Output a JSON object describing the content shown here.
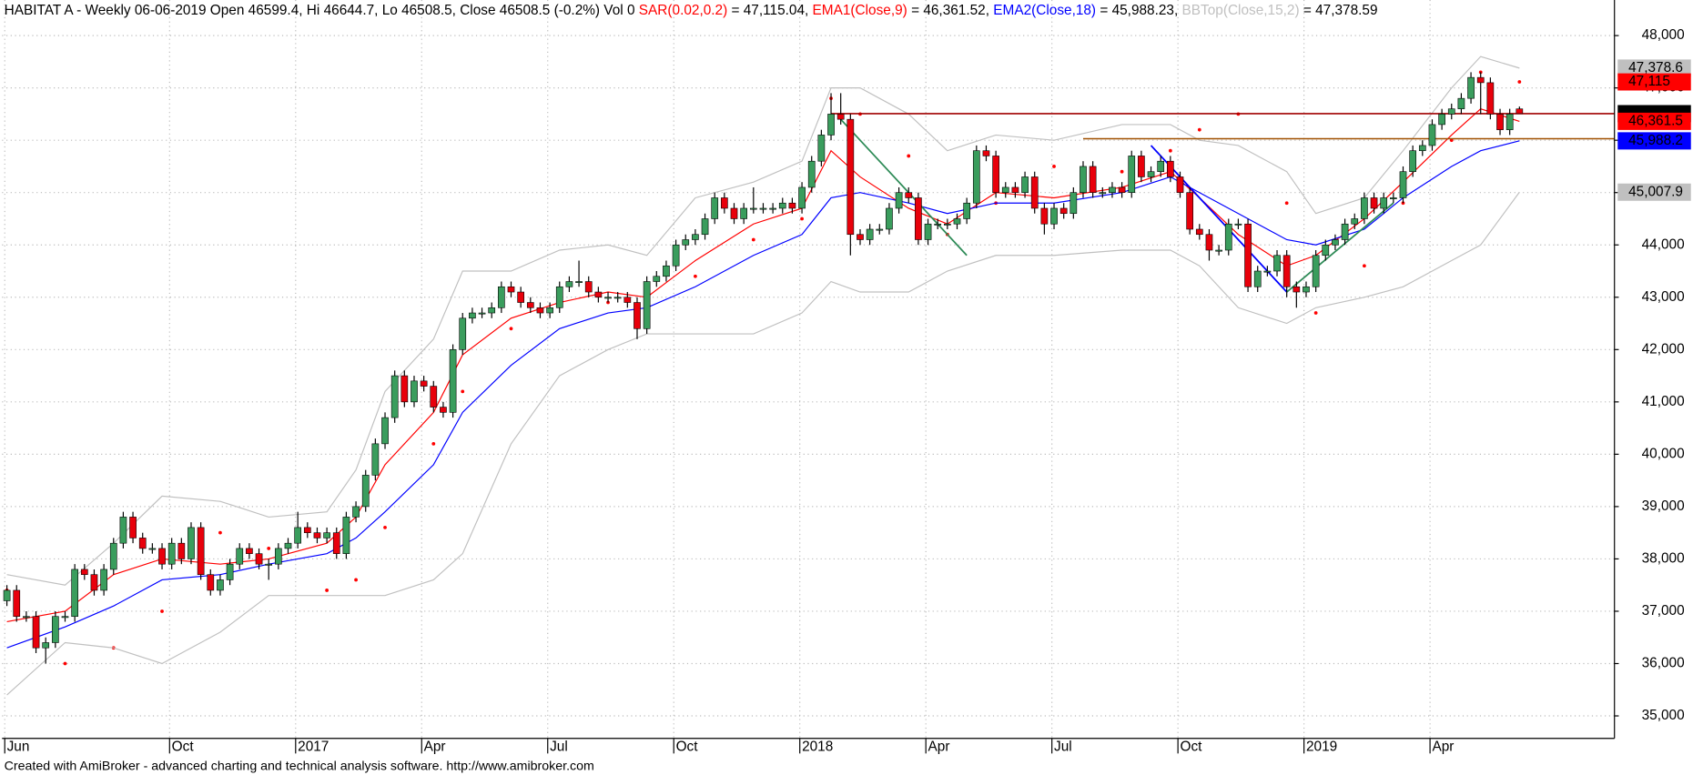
{
  "chart_data": {
    "type": "candlestick",
    "title": "HABITAT A - Weekly 06-06-2019 Open 46599.4, Hi 46644.7, Lo 46508.5, Close 46508.5 (-0.2%) Vol 0 ",
    "footer": "Created with AmiBroker - advanced charting and technical analysis software. http://www.amibroker.com",
    "up_color": "#3a9d5d",
    "down_color": "#e8000b",
    "categories": [
      "Jun",
      null,
      null,
      null,
      null,
      null,
      null,
      null,
      null,
      null,
      null,
      null,
      null,
      null,
      null,
      null,
      null,
      "Oct",
      null,
      null,
      null,
      null,
      null,
      null,
      null,
      null,
      null,
      null,
      null,
      null,
      "2017",
      null,
      null,
      null,
      null,
      null,
      null,
      null,
      null,
      null,
      null,
      null,
      null,
      "Apr",
      null,
      null,
      null,
      null,
      null,
      null,
      null,
      null,
      null,
      null,
      null,
      null,
      "Jul",
      null,
      null,
      null,
      null,
      null,
      null,
      null,
      null,
      null,
      null,
      null,
      null,
      "Oct",
      null,
      null,
      null,
      null,
      null,
      null,
      null,
      null,
      null,
      null,
      null,
      null,
      "2018",
      null,
      null,
      null,
      null,
      null,
      null,
      null,
      null,
      null,
      null,
      null,
      null,
      "Apr",
      null,
      null,
      null,
      null,
      null,
      null,
      null,
      null,
      null,
      null,
      null,
      null,
      "Jul",
      null,
      null,
      null,
      null,
      null,
      null,
      null,
      null,
      null,
      null,
      null,
      null,
      "Oct",
      null,
      null,
      null,
      null,
      null,
      null,
      null,
      null,
      null,
      null,
      null,
      null,
      "2019",
      null,
      null,
      null,
      null,
      null,
      null,
      null,
      null,
      null,
      null,
      null,
      null,
      "Apr",
      null,
      null,
      null,
      null,
      null,
      null,
      null,
      null,
      null
    ],
    "open": [
      37200,
      37400,
      36900,
      36900,
      36300,
      36400,
      36900,
      36900,
      37800,
      37700,
      37400,
      37800,
      38300,
      38800,
      38400,
      38200,
      38200,
      37900,
      38300,
      38000,
      38600,
      37700,
      37400,
      37600,
      37900,
      38200,
      38100,
      37900,
      37900,
      38200,
      38300,
      38600,
      38500,
      38400,
      38500,
      38100,
      38800,
      39000,
      39600,
      40200,
      40700,
      41500,
      41000,
      41400,
      41300,
      40900,
      40800,
      42000,
      42600,
      42700,
      42700,
      42800,
      43200,
      43100,
      42900,
      42800,
      42700,
      42800,
      43200,
      43300,
      43300,
      43100,
      43000,
      43000,
      43000,
      42900,
      42400,
      43300,
      43400,
      43600,
      44000,
      44100,
      44200,
      44500,
      44900,
      44700,
      44500,
      44700,
      44700,
      44700,
      44700,
      44800,
      44700,
      45100,
      45600,
      46100,
      46500,
      46400,
      44200,
      44100,
      44300,
      44300,
      44700,
      45000,
      44900,
      44100,
      44400,
      44400,
      44400,
      44500,
      44800,
      45800,
      45700,
      45000,
      45100,
      45000,
      45300,
      44700,
      44400,
      44700,
      44600,
      45000,
      45500,
      45000,
      45000,
      45100,
      45000,
      45700,
      45300,
      45400,
      45600,
      45300,
      45000,
      44300,
      44200,
      43900,
      43900,
      44400,
      44400,
      43200,
      43500,
      43500,
      43800,
      43200,
      43100,
      43200,
      43800,
      44000,
      44100,
      44400,
      44500,
      44900,
      44700,
      44900,
      44900,
      45400,
      45800,
      45900,
      46300,
      46500,
      46600,
      46800,
      47200,
      47100,
      46500,
      46200,
      46599.4
    ],
    "high": [
      37500,
      37500,
      37000,
      37000,
      36500,
      37000,
      37000,
      37900,
      37900,
      37800,
      37900,
      38400,
      38900,
      38900,
      38500,
      38300,
      38300,
      38400,
      38400,
      38700,
      38700,
      37800,
      37700,
      38000,
      38300,
      38300,
      38200,
      38000,
      38300,
      38400,
      38900,
      38700,
      38600,
      38600,
      38600,
      38900,
      39100,
      39700,
      40300,
      40800,
      41600,
      41600,
      41500,
      41500,
      41400,
      41000,
      42100,
      42700,
      42800,
      42800,
      42900,
      43300,
      43300,
      43200,
      43000,
      42900,
      42900,
      43300,
      43400,
      43700,
      43400,
      43200,
      43100,
      43100,
      43100,
      43000,
      43400,
      43500,
      43700,
      44100,
      44200,
      44300,
      44600,
      45000,
      45000,
      44800,
      44800,
      45100,
      44800,
      44800,
      44900,
      44900,
      45200,
      45700,
      46200,
      46900,
      46900,
      46500,
      44300,
      44400,
      44400,
      44800,
      45100,
      45100,
      45000,
      44500,
      44500,
      44500,
      44600,
      44900,
      45900,
      45900,
      45800,
      45200,
      45200,
      45400,
      45400,
      44800,
      44800,
      44800,
      45100,
      45600,
      45600,
      45100,
      45200,
      45200,
      45800,
      45800,
      45500,
      45700,
      45700,
      45400,
      45100,
      44400,
      44300,
      44000,
      44500,
      44500,
      44500,
      43600,
      43600,
      43900,
      43900,
      43300,
      43300,
      43900,
      44100,
      44200,
      44500,
      44600,
      45000,
      45000,
      45000,
      45000,
      45500,
      45900,
      46000,
      46400,
      46600,
      46700,
      46900,
      47300,
      47300,
      47200,
      46600,
      46600,
      46644.7
    ],
    "low": [
      37100,
      36800,
      36800,
      36200,
      36000,
      36300,
      36800,
      36800,
      37600,
      37300,
      37300,
      37700,
      38200,
      38300,
      38100,
      38100,
      37800,
      37800,
      37900,
      37900,
      37600,
      37300,
      37300,
      37500,
      37800,
      38000,
      37800,
      37600,
      37800,
      38100,
      38200,
      38400,
      38300,
      38300,
      38000,
      38000,
      38700,
      38900,
      39500,
      40100,
      40600,
      40900,
      40900,
      41200,
      40800,
      40700,
      40700,
      41900,
      42500,
      42600,
      42600,
      42700,
      43000,
      42800,
      42700,
      42600,
      42600,
      42700,
      43100,
      43200,
      43000,
      42900,
      42900,
      42900,
      42800,
      42200,
      42300,
      43200,
      43300,
      43500,
      43900,
      44000,
      44100,
      44400,
      44600,
      44400,
      44400,
      44600,
      44600,
      44600,
      44600,
      44600,
      44600,
      45000,
      45500,
      46000,
      46300,
      43800,
      44000,
      44000,
      44200,
      44200,
      44600,
      44800,
      44000,
      44000,
      44300,
      44300,
      44300,
      44400,
      44700,
      45600,
      44900,
      44900,
      44900,
      44900,
      44600,
      44200,
      44300,
      44500,
      44500,
      44900,
      44900,
      44900,
      44900,
      44900,
      44900,
      45200,
      45200,
      45300,
      45200,
      44900,
      44200,
      44100,
      43700,
      43800,
      43800,
      44300,
      43100,
      43100,
      43400,
      43400,
      43000,
      42800,
      43000,
      43100,
      43700,
      43900,
      44000,
      44300,
      44400,
      44600,
      44600,
      44800,
      44800,
      45300,
      45700,
      45800,
      46200,
      46400,
      46500,
      46700,
      46500,
      46400,
      46100,
      46100,
      46508.5
    ],
    "close": [
      37400,
      36900,
      36900,
      36300,
      36400,
      36900,
      36900,
      37800,
      37700,
      37400,
      37800,
      38300,
      38800,
      38400,
      38200,
      38200,
      37900,
      38300,
      38000,
      38600,
      37700,
      37400,
      37600,
      37900,
      38200,
      38100,
      37900,
      37900,
      38200,
      38300,
      38600,
      38500,
      38400,
      38500,
      38100,
      38800,
      39000,
      39600,
      40200,
      40700,
      41500,
      41000,
      41400,
      41300,
      40900,
      40800,
      42000,
      42600,
      42700,
      42700,
      42800,
      43200,
      43100,
      42900,
      42800,
      42700,
      42800,
      43200,
      43300,
      43300,
      43100,
      43000,
      43000,
      43000,
      42900,
      42400,
      43300,
      43400,
      43600,
      44000,
      44100,
      44200,
      44500,
      44900,
      44700,
      44500,
      44700,
      44700,
      44700,
      44700,
      44800,
      44700,
      45100,
      45600,
      46100,
      46500,
      46400,
      44200,
      44100,
      44300,
      44300,
      44700,
      45000,
      44900,
      44100,
      44400,
      44400,
      44400,
      44500,
      44800,
      45800,
      45700,
      45000,
      45100,
      45000,
      45300,
      44700,
      44400,
      44700,
      44600,
      45000,
      45500,
      45000,
      45000,
      45100,
      45000,
      45700,
      45300,
      45400,
      45600,
      45300,
      45000,
      44300,
      44200,
      43900,
      43900,
      44400,
      44400,
      43200,
      43500,
      43500,
      43800,
      43200,
      43100,
      43200,
      43800,
      44000,
      44100,
      44400,
      44500,
      44900,
      44700,
      44900,
      44900,
      45400,
      45800,
      45900,
      46300,
      46500,
      46600,
      46800,
      47200,
      47100,
      46500,
      46200,
      46500,
      46508.5
    ],
    "series": [
      {
        "name": "SAR(0.02,0.2)",
        "readout": " = 47,115.04, ",
        "color": "#ff0000",
        "style": "dots",
        "x": [
          0,
          6,
          11,
          16,
          22,
          27,
          33,
          36,
          39,
          44,
          47,
          52,
          57,
          62,
          66,
          71,
          77,
          82,
          85,
          88,
          93,
          97,
          102,
          108,
          115,
          120,
          123,
          127,
          132,
          135,
          140,
          144,
          149,
          152,
          156
        ],
        "values": [
          37400,
          36000,
          36300,
          37000,
          38500,
          38200,
          37400,
          37600,
          38600,
          40200,
          41200,
          42400,
          43000,
          42900,
          42500,
          43400,
          44100,
          44500,
          46800,
          46500,
          45700,
          44200,
          44800,
          45500,
          45400,
          45800,
          46200,
          46500,
          44800,
          42700,
          43600,
          44800,
          46000,
          47300,
          47115.04
        ]
      },
      {
        "name": "EMA1(Close,9)",
        "readout": " = 46,361.52, ",
        "color": "#ff0000",
        "style": "line",
        "x": [
          0,
          6,
          11,
          16,
          22,
          27,
          33,
          36,
          39,
          44,
          47,
          52,
          57,
          62,
          66,
          71,
          77,
          82,
          85,
          88,
          93,
          97,
          102,
          108,
          115,
          120,
          123,
          127,
          132,
          135,
          140,
          144,
          149,
          152,
          156
        ],
        "values": [
          36800,
          37000,
          37700,
          38000,
          37900,
          38000,
          38300,
          38800,
          39800,
          40800,
          41900,
          42600,
          42900,
          43100,
          43000,
          43700,
          44400,
          44700,
          45800,
          45300,
          44700,
          44400,
          45000,
          44900,
          45100,
          45400,
          44900,
          44200,
          43600,
          43800,
          44500,
          45200,
          46100,
          46600,
          46361.52
        ]
      },
      {
        "name": "EMA2(Close,18)",
        "readout": " = 45,988.23, ",
        "color": "#0000ff",
        "style": "line",
        "x": [
          0,
          6,
          11,
          16,
          22,
          27,
          33,
          36,
          39,
          44,
          47,
          52,
          57,
          62,
          66,
          71,
          77,
          82,
          85,
          88,
          93,
          97,
          102,
          108,
          115,
          120,
          123,
          127,
          132,
          135,
          140,
          144,
          149,
          152,
          156
        ],
        "values": [
          36300,
          36700,
          37100,
          37600,
          37700,
          37900,
          38100,
          38400,
          38900,
          39800,
          40800,
          41700,
          42400,
          42700,
          42800,
          43200,
          43800,
          44200,
          44900,
          45000,
          44800,
          44600,
          44800,
          44800,
          45000,
          45300,
          45000,
          44600,
          44100,
          44000,
          44300,
          44900,
          45500,
          45800,
          45988.23
        ]
      },
      {
        "name": "BBTop(Close,15,2)",
        "readout": " = 47,378.59",
        "color": "#c0c0c0",
        "style": "line",
        "x": [
          0,
          6,
          11,
          16,
          22,
          27,
          33,
          36,
          39,
          44,
          47,
          52,
          57,
          62,
          66,
          71,
          77,
          82,
          85,
          88,
          93,
          97,
          102,
          108,
          115,
          120,
          123,
          127,
          132,
          135,
          140,
          144,
          149,
          152,
          156
        ],
        "values": [
          37700,
          37500,
          38300,
          39200,
          39100,
          38800,
          38900,
          39700,
          41200,
          42200,
          43500,
          43500,
          43900,
          44000,
          43800,
          44900,
          45200,
          45600,
          47000,
          47000,
          46500,
          45800,
          46100,
          46000,
          46300,
          46300,
          46000,
          45900,
          45400,
          44600,
          44900,
          45800,
          47000,
          47600,
          47378.6
        ]
      },
      {
        "color": "#c0c0c0",
        "style": "line",
        "x": [
          0,
          6,
          11,
          16,
          22,
          27,
          33,
          36,
          39,
          44,
          47,
          52,
          57,
          62,
          66,
          71,
          77,
          82,
          85,
          88,
          93,
          97,
          102,
          108,
          115,
          120,
          123,
          127,
          132,
          135,
          140,
          144,
          149,
          152,
          156
        ],
        "values": [
          35400,
          36400,
          36300,
          36000,
          36600,
          37300,
          37300,
          37300,
          37300,
          37600,
          38100,
          40200,
          41500,
          42000,
          42300,
          42300,
          42300,
          42700,
          43300,
          43100,
          43100,
          43500,
          43800,
          43800,
          43900,
          43900,
          43600,
          42800,
          42500,
          42800,
          43000,
          43200,
          43700,
          44000,
          45007.9
        ]
      }
    ],
    "trendlines": [
      {
        "x": [
          86,
          99
        ],
        "values": [
          46400,
          43800
        ],
        "color": "#2e8b57"
      },
      {
        "x": [
          118,
          132
        ],
        "values": [
          45900,
          43100
        ],
        "color": "#0000ff"
      },
      {
        "x": [
          132,
          143
        ],
        "values": [
          43100,
          44800
        ],
        "color": "#2e8b57"
      }
    ],
    "levels": [
      {
        "from": 85,
        "value": 46508.5,
        "color": "#a00000"
      },
      {
        "from": 111,
        "value": 46030,
        "color": "#a05000"
      }
    ],
    "price_labels": [
      {
        "value": 47378.6,
        "label": "47,378.6",
        "color": "#c0c0c0",
        "text_color": "#000000"
      },
      {
        "value": 47115,
        "label": "47,115",
        "color": "#ff0000",
        "text_color": "#000000"
      },
      {
        "value": 46508.5,
        "label": "46,508.5",
        "color": "#000000",
        "text_color": "#ffffff"
      },
      {
        "value": 46361.5,
        "label": "46,361.5",
        "color": "#ff0000",
        "text_color": "#ffffff"
      },
      {
        "value": 45988.2,
        "label": "45,988.2",
        "color": "#0000ff",
        "text_color": "#ffffff"
      },
      {
        "value": 45007.9,
        "label": "45,007.9",
        "color": "#c0c0c0",
        "text_color": "#000000"
      }
    ],
    "xlim": [
      -0.5,
      165.8
    ],
    "ylim": [
      34570,
      48680
    ],
    "yticks": [
      {
        "value": 35000,
        "label": "35,000"
      },
      {
        "value": 36000,
        "label": "36,000"
      },
      {
        "value": 37000,
        "label": "37,000"
      },
      {
        "value": 38000,
        "label": "38,000"
      },
      {
        "value": 39000,
        "label": "39,000"
      },
      {
        "value": 40000,
        "label": "40,000"
      },
      {
        "value": 41000,
        "label": "41,000"
      },
      {
        "value": 42000,
        "label": "42,000"
      },
      {
        "value": 43000,
        "label": "43,000"
      },
      {
        "value": 44000,
        "label": "44,000"
      },
      {
        "value": 45000,
        "label": "45,000"
      },
      {
        "value": 46000,
        "label": "46,000"
      },
      {
        "value": 47000,
        "label": "47,000"
      },
      {
        "value": 48000,
        "label": "48,000"
      }
    ],
    "grid": true
  }
}
